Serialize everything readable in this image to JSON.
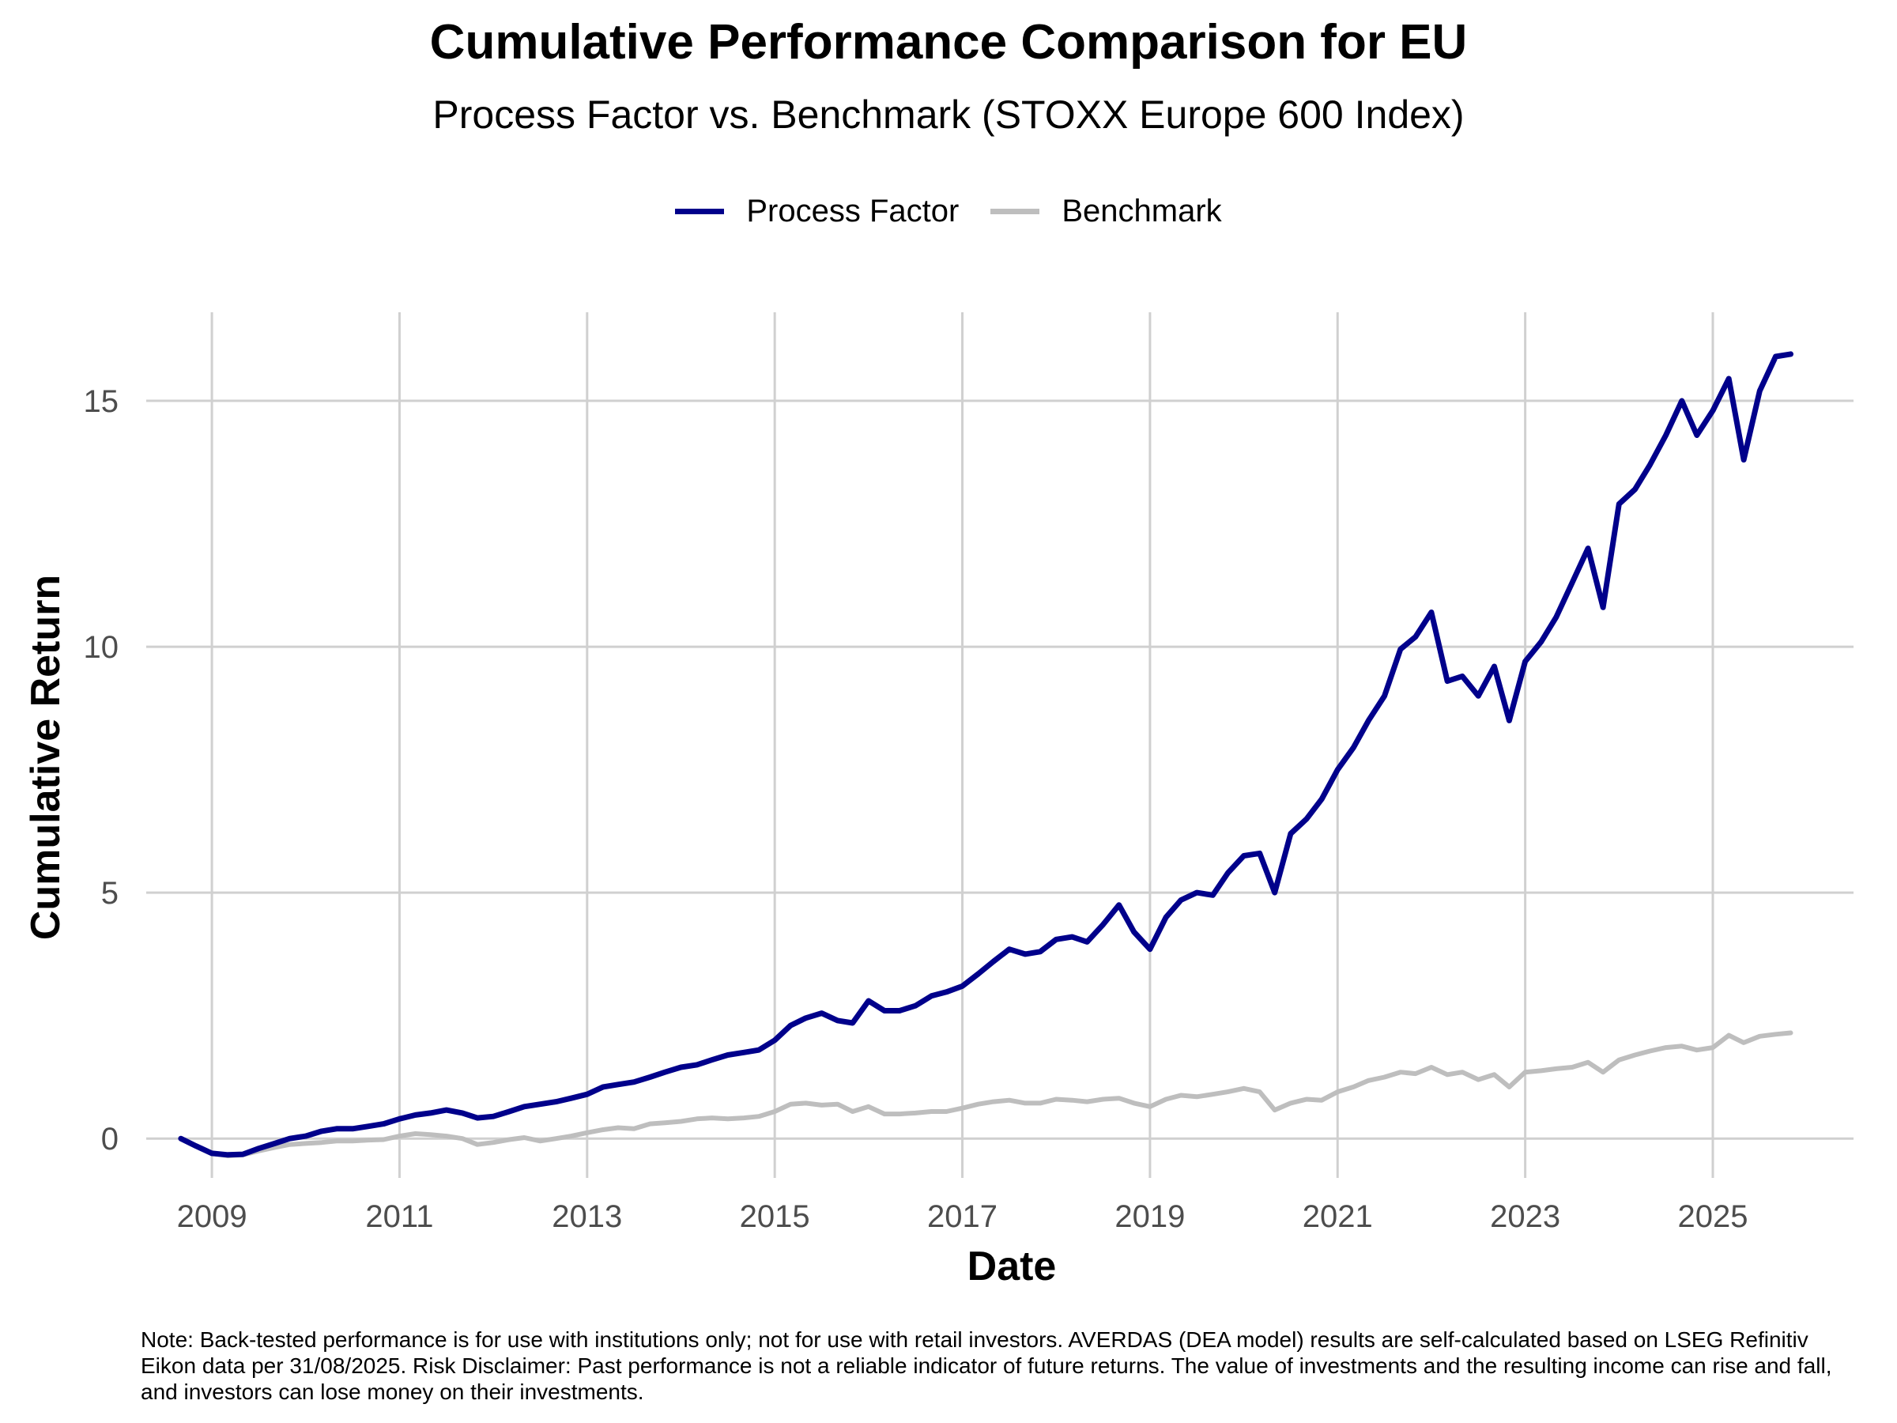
{
  "title": "Cumulative Performance Comparison for EU",
  "subtitle": "Process Factor vs. Benchmark (STOXX Europe 600 Index)",
  "note": "Note: Back-tested performance is for use with institutions only; not for use with retail investors. AVERDAS (DEA model) results are self-calculated based on LSEG Refinitiv Eikon data per 31/08/2025. Risk Disclaimer: Past performance is not a reliable indicator of future returns. The value of investments and the resulting income can rise and fall, and investors can lose money on their investments.",
  "chart_data": {
    "type": "line",
    "xlabel": "Date",
    "ylabel": "Cumulative Return",
    "xlim": [
      2008.3,
      2026.5
    ],
    "ylim": [
      -0.8,
      16.8
    ],
    "x_ticks": [
      2009,
      2011,
      2013,
      2015,
      2017,
      2019,
      2021,
      2023,
      2025
    ],
    "x_tick_labels": [
      "2009",
      "2011",
      "2013",
      "2015",
      "2017",
      "2019",
      "2021",
      "2023",
      "2025"
    ],
    "y_ticks": [
      0,
      5,
      10,
      15
    ],
    "y_tick_labels": [
      "0",
      "5",
      "10",
      "15"
    ],
    "grid": true,
    "legend_position": "top",
    "series": [
      {
        "name": "Process Factor",
        "color": "#00008B",
        "points": [
          [
            2008.67,
            0.0
          ],
          [
            2008.83,
            -0.15
          ],
          [
            2009.0,
            -0.3
          ],
          [
            2009.17,
            -0.33
          ],
          [
            2009.33,
            -0.32
          ],
          [
            2009.5,
            -0.2
          ],
          [
            2009.67,
            -0.1
          ],
          [
            2009.83,
            0.0
          ],
          [
            2010.0,
            0.05
          ],
          [
            2010.17,
            0.15
          ],
          [
            2010.33,
            0.2
          ],
          [
            2010.5,
            0.2
          ],
          [
            2010.67,
            0.25
          ],
          [
            2010.83,
            0.3
          ],
          [
            2011.0,
            0.4
          ],
          [
            2011.17,
            0.48
          ],
          [
            2011.33,
            0.52
          ],
          [
            2011.5,
            0.58
          ],
          [
            2011.67,
            0.52
          ],
          [
            2011.83,
            0.42
          ],
          [
            2012.0,
            0.45
          ],
          [
            2012.17,
            0.55
          ],
          [
            2012.33,
            0.65
          ],
          [
            2012.5,
            0.7
          ],
          [
            2012.67,
            0.75
          ],
          [
            2012.83,
            0.82
          ],
          [
            2013.0,
            0.9
          ],
          [
            2013.17,
            1.05
          ],
          [
            2013.33,
            1.1
          ],
          [
            2013.5,
            1.15
          ],
          [
            2013.67,
            1.25
          ],
          [
            2013.83,
            1.35
          ],
          [
            2014.0,
            1.45
          ],
          [
            2014.17,
            1.5
          ],
          [
            2014.33,
            1.6
          ],
          [
            2014.5,
            1.7
          ],
          [
            2014.67,
            1.75
          ],
          [
            2014.83,
            1.8
          ],
          [
            2015.0,
            2.0
          ],
          [
            2015.17,
            2.3
          ],
          [
            2015.33,
            2.45
          ],
          [
            2015.5,
            2.55
          ],
          [
            2015.67,
            2.4
          ],
          [
            2015.83,
            2.35
          ],
          [
            2016.0,
            2.8
          ],
          [
            2016.17,
            2.6
          ],
          [
            2016.33,
            2.6
          ],
          [
            2016.5,
            2.7
          ],
          [
            2016.67,
            2.9
          ],
          [
            2016.83,
            2.98
          ],
          [
            2017.0,
            3.1
          ],
          [
            2017.17,
            3.35
          ],
          [
            2017.33,
            3.6
          ],
          [
            2017.5,
            3.85
          ],
          [
            2017.67,
            3.75
          ],
          [
            2017.83,
            3.8
          ],
          [
            2018.0,
            4.05
          ],
          [
            2018.17,
            4.1
          ],
          [
            2018.33,
            4.0
          ],
          [
            2018.5,
            4.35
          ],
          [
            2018.67,
            4.75
          ],
          [
            2018.83,
            4.2
          ],
          [
            2019.0,
            3.85
          ],
          [
            2019.17,
            4.5
          ],
          [
            2019.33,
            4.85
          ],
          [
            2019.5,
            5.0
          ],
          [
            2019.67,
            4.95
          ],
          [
            2019.83,
            5.4
          ],
          [
            2020.0,
            5.75
          ],
          [
            2020.17,
            5.8
          ],
          [
            2020.33,
            5.0
          ],
          [
            2020.5,
            6.2
          ],
          [
            2020.67,
            6.5
          ],
          [
            2020.83,
            6.9
          ],
          [
            2021.0,
            7.5
          ],
          [
            2021.17,
            7.95
          ],
          [
            2021.33,
            8.5
          ],
          [
            2021.5,
            9.0
          ],
          [
            2021.67,
            9.95
          ],
          [
            2021.83,
            10.2
          ],
          [
            2022.0,
            10.7
          ],
          [
            2022.17,
            9.3
          ],
          [
            2022.33,
            9.4
          ],
          [
            2022.5,
            9.0
          ],
          [
            2022.67,
            9.6
          ],
          [
            2022.83,
            8.5
          ],
          [
            2023.0,
            9.7
          ],
          [
            2023.17,
            10.1
          ],
          [
            2023.33,
            10.6
          ],
          [
            2023.5,
            11.3
          ],
          [
            2023.67,
            12.0
          ],
          [
            2023.83,
            10.8
          ],
          [
            2024.0,
            12.9
          ],
          [
            2024.17,
            13.2
          ],
          [
            2024.33,
            13.7
          ],
          [
            2024.5,
            14.3
          ],
          [
            2024.67,
            15.0
          ],
          [
            2024.83,
            14.3
          ],
          [
            2025.0,
            14.8
          ],
          [
            2025.17,
            15.45
          ],
          [
            2025.33,
            13.8
          ],
          [
            2025.5,
            15.2
          ],
          [
            2025.67,
            15.9
          ],
          [
            2025.83,
            15.95
          ]
        ]
      },
      {
        "name": "Benchmark",
        "color": "#BEBEBE",
        "points": [
          [
            2008.67,
            0.0
          ],
          [
            2008.83,
            -0.15
          ],
          [
            2009.0,
            -0.3
          ],
          [
            2009.17,
            -0.35
          ],
          [
            2009.33,
            -0.33
          ],
          [
            2009.5,
            -0.25
          ],
          [
            2009.67,
            -0.18
          ],
          [
            2009.83,
            -0.12
          ],
          [
            2010.0,
            -0.1
          ],
          [
            2010.17,
            -0.08
          ],
          [
            2010.33,
            -0.05
          ],
          [
            2010.5,
            -0.05
          ],
          [
            2010.67,
            -0.03
          ],
          [
            2010.83,
            -0.02
          ],
          [
            2011.0,
            0.05
          ],
          [
            2011.17,
            0.1
          ],
          [
            2011.33,
            0.08
          ],
          [
            2011.5,
            0.05
          ],
          [
            2011.67,
            0.0
          ],
          [
            2011.83,
            -0.12
          ],
          [
            2012.0,
            -0.08
          ],
          [
            2012.17,
            -0.02
          ],
          [
            2012.33,
            0.02
          ],
          [
            2012.5,
            -0.05
          ],
          [
            2012.67,
            0.0
          ],
          [
            2012.83,
            0.05
          ],
          [
            2013.0,
            0.12
          ],
          [
            2013.17,
            0.18
          ],
          [
            2013.33,
            0.22
          ],
          [
            2013.5,
            0.2
          ],
          [
            2013.67,
            0.3
          ],
          [
            2013.83,
            0.32
          ],
          [
            2014.0,
            0.35
          ],
          [
            2014.17,
            0.4
          ],
          [
            2014.33,
            0.42
          ],
          [
            2014.5,
            0.4
          ],
          [
            2014.67,
            0.42
          ],
          [
            2014.83,
            0.45
          ],
          [
            2015.0,
            0.55
          ],
          [
            2015.17,
            0.7
          ],
          [
            2015.33,
            0.72
          ],
          [
            2015.5,
            0.68
          ],
          [
            2015.67,
            0.7
          ],
          [
            2015.83,
            0.55
          ],
          [
            2016.0,
            0.65
          ],
          [
            2016.17,
            0.5
          ],
          [
            2016.33,
            0.5
          ],
          [
            2016.5,
            0.52
          ],
          [
            2016.67,
            0.55
          ],
          [
            2016.83,
            0.55
          ],
          [
            2017.0,
            0.62
          ],
          [
            2017.17,
            0.7
          ],
          [
            2017.33,
            0.75
          ],
          [
            2017.5,
            0.78
          ],
          [
            2017.67,
            0.72
          ],
          [
            2017.83,
            0.72
          ],
          [
            2018.0,
            0.8
          ],
          [
            2018.17,
            0.78
          ],
          [
            2018.33,
            0.75
          ],
          [
            2018.5,
            0.8
          ],
          [
            2018.67,
            0.82
          ],
          [
            2018.83,
            0.72
          ],
          [
            2019.0,
            0.65
          ],
          [
            2019.17,
            0.8
          ],
          [
            2019.33,
            0.88
          ],
          [
            2019.5,
            0.85
          ],
          [
            2019.67,
            0.9
          ],
          [
            2019.83,
            0.95
          ],
          [
            2020.0,
            1.02
          ],
          [
            2020.17,
            0.95
          ],
          [
            2020.33,
            0.58
          ],
          [
            2020.5,
            0.72
          ],
          [
            2020.67,
            0.8
          ],
          [
            2020.83,
            0.78
          ],
          [
            2021.0,
            0.95
          ],
          [
            2021.17,
            1.05
          ],
          [
            2021.33,
            1.18
          ],
          [
            2021.5,
            1.25
          ],
          [
            2021.67,
            1.35
          ],
          [
            2021.83,
            1.32
          ],
          [
            2022.0,
            1.45
          ],
          [
            2022.17,
            1.3
          ],
          [
            2022.33,
            1.35
          ],
          [
            2022.5,
            1.2
          ],
          [
            2022.67,
            1.3
          ],
          [
            2022.83,
            1.05
          ],
          [
            2023.0,
            1.35
          ],
          [
            2023.17,
            1.38
          ],
          [
            2023.33,
            1.42
          ],
          [
            2023.5,
            1.45
          ],
          [
            2023.67,
            1.55
          ],
          [
            2023.83,
            1.35
          ],
          [
            2024.0,
            1.6
          ],
          [
            2024.17,
            1.7
          ],
          [
            2024.33,
            1.78
          ],
          [
            2024.5,
            1.85
          ],
          [
            2024.67,
            1.88
          ],
          [
            2024.83,
            1.8
          ],
          [
            2025.0,
            1.85
          ],
          [
            2025.17,
            2.1
          ],
          [
            2025.33,
            1.95
          ],
          [
            2025.5,
            2.08
          ],
          [
            2025.67,
            2.12
          ],
          [
            2025.83,
            2.15
          ]
        ]
      }
    ]
  }
}
